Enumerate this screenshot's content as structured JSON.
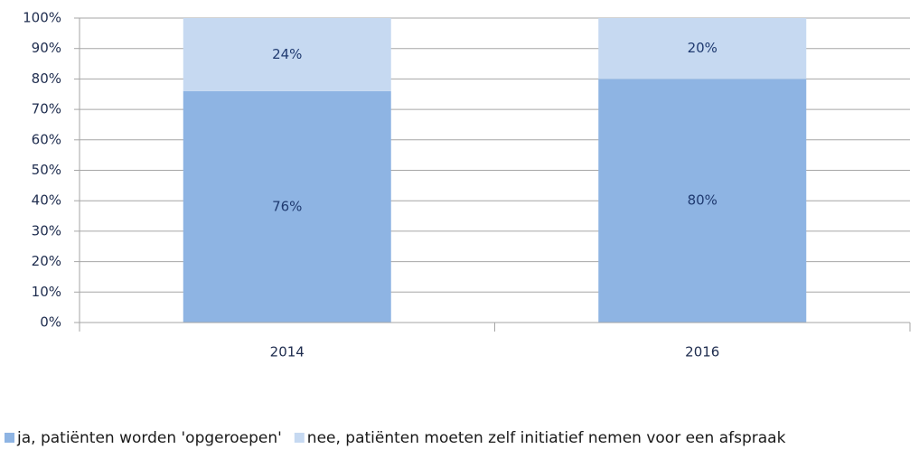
{
  "chart_data": {
    "type": "stacked_bar",
    "categories": [
      "2014",
      "2016"
    ],
    "series": [
      {
        "name": "ja, patiënten worden 'opgeroepen'",
        "color": "#8eb4e3",
        "values": [
          76,
          80
        ],
        "value_labels": [
          "76%",
          "80%"
        ]
      },
      {
        "name": "nee, patiënten moeten zelf initiatief nemen voor een afspraak",
        "color": "#c6d9f1",
        "values": [
          24,
          20
        ],
        "value_labels": [
          "24%",
          "20%"
        ]
      }
    ],
    "ylim": [
      0,
      100
    ],
    "yticks": [
      {
        "value": 0,
        "label": "0%"
      },
      {
        "value": 10,
        "label": "10%"
      },
      {
        "value": 20,
        "label": "20%"
      },
      {
        "value": 30,
        "label": "30%"
      },
      {
        "value": 40,
        "label": "40%"
      },
      {
        "value": 50,
        "label": "50%"
      },
      {
        "value": 60,
        "label": "60%"
      },
      {
        "value": 70,
        "label": "70%"
      },
      {
        "value": 80,
        "label": "80%"
      },
      {
        "value": 90,
        "label": "90%"
      },
      {
        "value": 100,
        "label": "100%"
      }
    ],
    "grid": true,
    "legend": "bottom"
  }
}
